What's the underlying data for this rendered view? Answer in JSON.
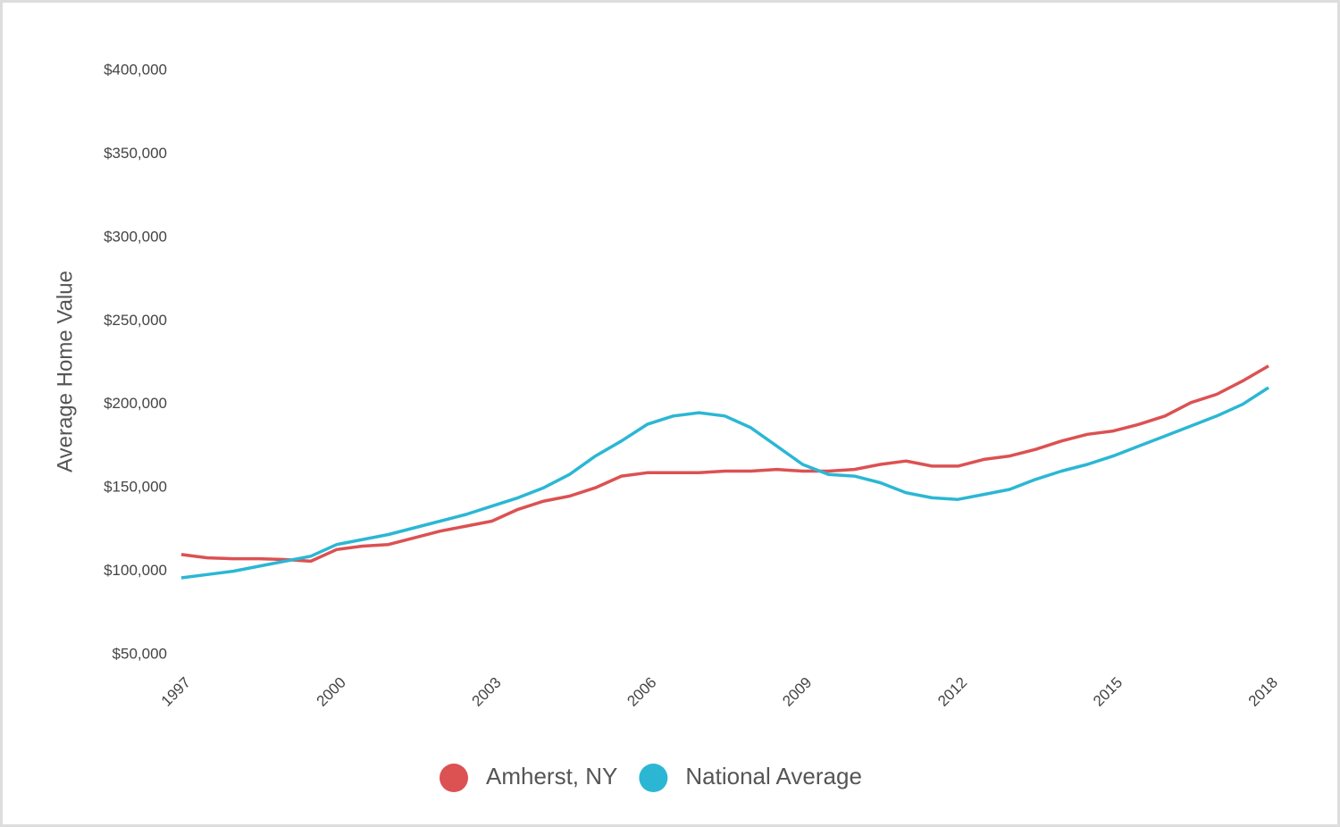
{
  "chart_data": {
    "type": "line",
    "y_label": "Average Home Value",
    "x": [
      1997,
      1997.5,
      1998,
      1998.5,
      1999,
      1999.5,
      2000,
      2000.5,
      2001,
      2001.5,
      2002,
      2002.5,
      2003,
      2003.5,
      2004,
      2004.5,
      2005,
      2005.5,
      2006,
      2006.5,
      2007,
      2007.5,
      2008,
      2008.5,
      2009,
      2009.5,
      2010,
      2010.5,
      2011,
      2011.5,
      2012,
      2012.5,
      2013,
      2013.5,
      2014,
      2014.5,
      2015,
      2015.5,
      2016,
      2016.5,
      2017,
      2017.5,
      2018
    ],
    "series": [
      {
        "name": "Amherst, NY",
        "color": "#dc5152",
        "values": [
          110000,
          108000,
          107500,
          107500,
          107000,
          106000,
          113000,
          115000,
          116000,
          120000,
          124000,
          127000,
          130000,
          137000,
          142000,
          145000,
          150000,
          157000,
          159000,
          159000,
          159000,
          160000,
          160000,
          161000,
          160000,
          160000,
          161000,
          164000,
          166000,
          163000,
          163000,
          167000,
          169000,
          173000,
          178000,
          182000,
          184000,
          188000,
          193000,
          201000,
          206000,
          214000,
          223000
        ]
      },
      {
        "name": "National Average",
        "color": "#2bb7d4",
        "values": [
          96000,
          98000,
          100000,
          103000,
          106000,
          109000,
          116000,
          119000,
          122000,
          126000,
          130000,
          134000,
          139000,
          144000,
          150000,
          158000,
          169000,
          178000,
          188000,
          193000,
          195000,
          193000,
          186000,
          175000,
          164000,
          158000,
          157000,
          153000,
          147000,
          144000,
          143000,
          146000,
          149000,
          155000,
          160000,
          164000,
          169000,
          175000,
          181000,
          187000,
          193000,
          200000,
          210000
        ]
      }
    ],
    "xlim": [
      1997,
      2018
    ],
    "xticks": [
      1997,
      2000,
      2003,
      2006,
      2009,
      2012,
      2015,
      2018
    ],
    "ylim": [
      50000,
      400000
    ],
    "yticks": [
      {
        "value": 50000,
        "label": "$50,000"
      },
      {
        "value": 100000,
        "label": "$100,000"
      },
      {
        "value": 150000,
        "label": "$150,000"
      },
      {
        "value": 200000,
        "label": "$200,000"
      },
      {
        "value": 250000,
        "label": "$250,000"
      },
      {
        "value": 300000,
        "label": "$300,000"
      },
      {
        "value": 350000,
        "label": "$350,000"
      },
      {
        "value": 400000,
        "label": "$400,000"
      }
    ],
    "grid": false,
    "legend": "bottom"
  }
}
